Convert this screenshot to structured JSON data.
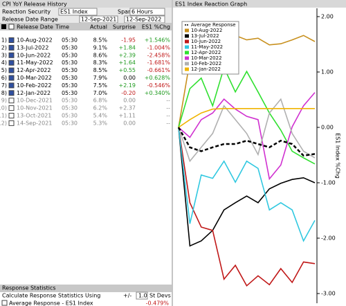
{
  "panel": {
    "title": "CPI YoY Release History",
    "security_label": "Reaction Security",
    "security": "ES1 Index",
    "span_label": "Span",
    "span": "6 Hours",
    "range_label": "Release Date Range",
    "range_start": "12-Sep-2021",
    "range_end": "12-Sep-2022"
  },
  "table": {
    "headers": [
      "Release Date",
      "Time",
      "Actual",
      "Surprise",
      "ES1 %Chg"
    ],
    "rows": [
      {
        "num": "1)",
        "checked": true,
        "cells": [
          "10-Aug-2022",
          "05:30",
          "8.5%",
          "-1.95",
          "+1.546%"
        ]
      },
      {
        "num": "2)",
        "checked": true,
        "cells": [
          "13-Jul-2022",
          "05:30",
          "9.1%",
          "+1.84",
          "-1.004%"
        ]
      },
      {
        "num": "3)",
        "checked": true,
        "cells": [
          "10-Jun-2022",
          "05:30",
          "8.6%",
          "+2.39",
          "-2.458%"
        ]
      },
      {
        "num": "4)",
        "checked": true,
        "cells": [
          "11-May-2022",
          "05:30",
          "8.3%",
          "+1.64",
          "-1.681%"
        ]
      },
      {
        "num": "5)",
        "checked": true,
        "cells": [
          "12-Apr-2022",
          "05:30",
          "8.5%",
          "+0.55",
          "-0.661%"
        ]
      },
      {
        "num": "6)",
        "checked": true,
        "cells": [
          "10-Mar-2022",
          "05:30",
          "7.9%",
          "0.00",
          "+0.628%"
        ]
      },
      {
        "num": "7)",
        "checked": true,
        "cells": [
          "10-Feb-2022",
          "05:30",
          "7.5%",
          "+2.19",
          "-0.546%"
        ]
      },
      {
        "num": "8)",
        "checked": true,
        "cells": [
          "12-Jan-2022",
          "05:30",
          "7.0%",
          "-0.20",
          "+0.340%"
        ]
      },
      {
        "num": "9)",
        "checked": false,
        "cells": [
          "10-Dec-2021",
          "05:30",
          "6.8%",
          "0.00",
          "--"
        ]
      },
      {
        "num": "10)",
        "checked": false,
        "cells": [
          "10-Nov-2021",
          "05:30",
          "6.2%",
          "+2.37",
          "--"
        ]
      },
      {
        "num": "11)",
        "checked": false,
        "cells": [
          "13-Oct-2021",
          "05:30",
          "5.4%",
          "+1.11",
          "--"
        ]
      },
      {
        "num": "12)",
        "checked": false,
        "cells": [
          "14-Sep-2021",
          "05:30",
          "5.3%",
          "0.00",
          "--"
        ]
      }
    ]
  },
  "stats": {
    "title": "Response Statistics",
    "calc_label": "Calculate Response Statistics Using",
    "pm": "+/-",
    "stdev": "1.0",
    "stdev_unit": "St Devs",
    "avg_label": "Average Response - ES1 Index",
    "avg_value": "-0.479%"
  },
  "chart_data": {
    "type": "line",
    "title": "ES1 Index Reaction Graph",
    "y_label": "ES1 Index %Chg",
    "ylim": [
      -3.1,
      2.15
    ],
    "yticks": [
      {
        "value": 2,
        "label": "2.00"
      },
      {
        "value": 1,
        "label": "1.00"
      },
      {
        "value": 0,
        "label": "0.00"
      },
      {
        "value": -1,
        "label": "-1.00"
      },
      {
        "value": -2,
        "label": "-2.00"
      },
      {
        "value": -3,
        "label": "-3.00"
      }
    ],
    "series": [
      {
        "name": "Average Response",
        "color": "#000000",
        "dashed": true,
        "values": [
          0,
          -0.36,
          -0.43,
          -0.36,
          -0.3,
          -0.3,
          -0.24,
          -0.3,
          -0.36,
          -0.24,
          -0.3,
          -0.51,
          -0.48
        ]
      },
      {
        "name": "10-Aug-2022",
        "color": "#c8901e",
        "values": [
          0,
          1.2,
          1.39,
          1.54,
          1.58,
          1.66,
          1.58,
          1.61,
          1.49,
          1.51,
          1.58,
          1.66,
          1.55
        ]
      },
      {
        "name": "13-Jul-2022",
        "color": "#000000",
        "values": [
          0,
          -2.14,
          -2.05,
          -1.86,
          -1.49,
          -1.36,
          -1.24,
          -1.36,
          -1.11,
          -1.01,
          -0.94,
          -0.91,
          -1.0
        ]
      },
      {
        "name": "10-Jun-2022",
        "color": "#c01818",
        "values": [
          0,
          -1.36,
          -1.8,
          -1.86,
          -2.74,
          -2.49,
          -2.86,
          -2.68,
          -2.84,
          -2.55,
          -2.8,
          -2.43,
          -2.46
        ]
      },
      {
        "name": "11-May-2022",
        "color": "#30c8e0",
        "values": [
          0,
          -1.74,
          -0.86,
          -0.92,
          -0.61,
          -0.99,
          -0.61,
          -0.74,
          -1.49,
          -1.36,
          -1.49,
          -2.05,
          -1.68
        ]
      },
      {
        "name": "12-Apr-2022",
        "color": "#30e030",
        "values": [
          0,
          0.7,
          0.89,
          0.39,
          1.08,
          0.64,
          1.01,
          0.64,
          0.26,
          -0.05,
          -0.43,
          -0.55,
          -0.66
        ]
      },
      {
        "name": "10-Mar-2022",
        "color": "#d030d0",
        "values": [
          0,
          -0.18,
          0.14,
          0.26,
          0.51,
          0.33,
          0.2,
          0.14,
          -0.93,
          -0.68,
          0.01,
          0.39,
          0.63
        ]
      },
      {
        "name": "10-Feb-2022",
        "color": "#b0b0b0",
        "values": [
          0,
          -0.61,
          -0.36,
          -0.11,
          0.39,
          0.14,
          -0.11,
          -0.49,
          0.26,
          0.51,
          -0.11,
          -0.43,
          -0.55
        ]
      },
      {
        "name": "12-Jan-2022",
        "color": "#f0b400",
        "values": [
          0,
          0.14,
          0.26,
          0.33,
          0.34,
          0.34,
          0.34,
          0.34,
          0.34,
          0.34,
          0.34,
          0.34,
          0.34
        ]
      }
    ]
  }
}
